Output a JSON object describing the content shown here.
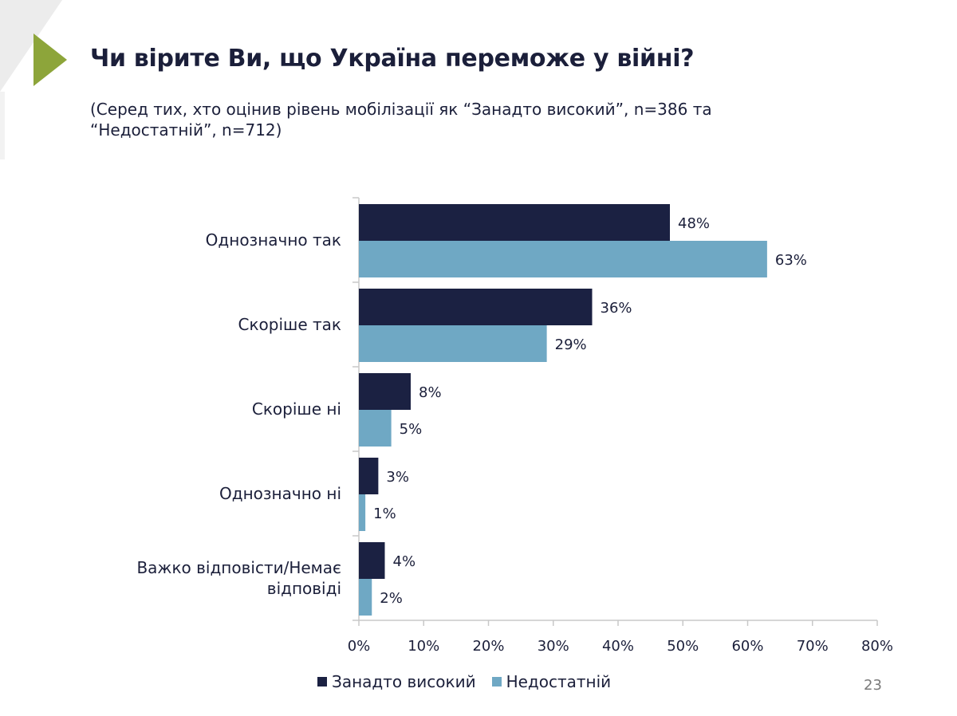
{
  "slide": {
    "title": "Чи вірите Ви, що Україна переможе у війні?",
    "subtitle": "(Серед тих, хто оцінив рівень мобілізації як “Занадто високий”, n=386 та “Недостатній”, n=712)",
    "page_number": "23"
  },
  "colors": {
    "series_1": "#1b2142",
    "series_2": "#6fa8c4",
    "axis": "#c8c8c8",
    "accent": "#8da53a"
  },
  "chart_data": {
    "type": "bar",
    "orientation": "horizontal",
    "categories": [
      [
        "Однозначно так"
      ],
      [
        "Скоріше так"
      ],
      [
        "Скоріше ні"
      ],
      [
        "Однозначно ні"
      ],
      [
        "Важко відповісти/Немає",
        "відповіді"
      ]
    ],
    "series": [
      {
        "name": "Занадто високий",
        "values": [
          48,
          36,
          8,
          3,
          4
        ],
        "labels": [
          "48%",
          "36%",
          "8%",
          "3%",
          "4%"
        ]
      },
      {
        "name": "Недостатній",
        "values": [
          63,
          29,
          5,
          1,
          2
        ],
        "labels": [
          "63%",
          "29%",
          "5%",
          "1%",
          "2%"
        ]
      }
    ],
    "xlim": [
      0,
      80
    ],
    "xticks": [
      0,
      10,
      20,
      30,
      40,
      50,
      60,
      70,
      80
    ],
    "xtick_labels": [
      "0%",
      "10%",
      "20%",
      "30%",
      "40%",
      "50%",
      "60%",
      "70%",
      "80%"
    ],
    "grid": false,
    "legend_position": "bottom"
  }
}
